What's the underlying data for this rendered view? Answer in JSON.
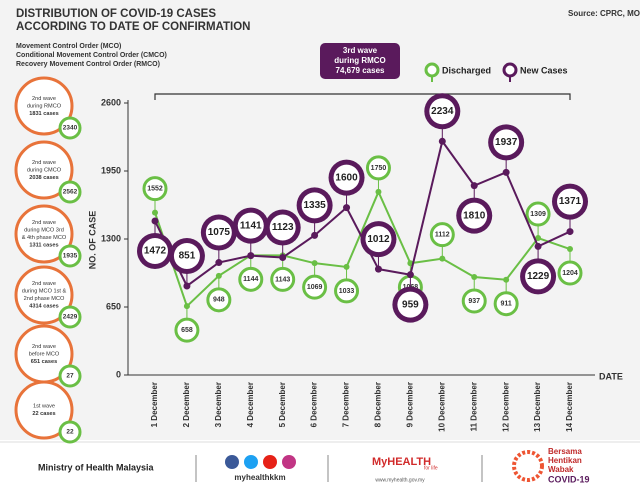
{
  "chart_data": {
    "type": "line",
    "title": "DISTRIBUTION OF COVID-19 CASES ACCORDING TO DATE OF CONFIRMATION",
    "source": "Source: CPRC, MOH",
    "subtitles": [
      "Movement Control Order (MCO)",
      "Conditional Movement Control Order (CMCO)",
      "Recovery Movement Control Order (RMCO)"
    ],
    "annotation": [
      "3rd wave",
      "during RMCO",
      "74,679 cases"
    ],
    "ylabel": "NO. OF CASE",
    "xlabel": "DATE",
    "categories": [
      "1 December",
      "2 December",
      "3 December",
      "4 December",
      "5 December",
      "6 December",
      "7 December",
      "8 December",
      "9 December",
      "10 December",
      "11 December",
      "12 December",
      "13 December",
      "14 December"
    ],
    "series": [
      {
        "name": "Discharged",
        "color": "#6abf45",
        "values": [
          1552,
          658,
          948,
          1144,
          1143,
          1069,
          1033,
          1750,
          1068,
          1112,
          937,
          911,
          1309,
          1204
        ]
      },
      {
        "name": "New Cases",
        "color": "#5a1a5c",
        "values": [
          1472,
          851,
          1075,
          1141,
          1123,
          1335,
          1600,
          1012,
          959,
          2234,
          1810,
          1937,
          1229,
          1371
        ]
      }
    ],
    "ylim": [
      0,
      2600
    ],
    "yticks": [
      0,
      650,
      1300,
      1950,
      2600
    ],
    "legend": "top-right",
    "grid": false
  },
  "waves": [
    {
      "label": [
        "2nd wave",
        "during RMCO",
        "1831 cases"
      ],
      "badge": 2340
    },
    {
      "label": [
        "2nd wave",
        "during CMCO",
        "2038 cases"
      ],
      "badge": 2562
    },
    {
      "label": [
        "2nd wave",
        "during MCO 3rd",
        "& 4th phase MCO",
        "1311 cases"
      ],
      "badge": 1935
    },
    {
      "label": [
        "2nd wave",
        "during MCO 1st &",
        "2nd phase MCO",
        "4314 cases"
      ],
      "badge": 2429
    },
    {
      "label": [
        "2nd wave",
        "before MCO",
        "651 cases"
      ],
      "badge": 27
    },
    {
      "label": [
        "1st wave",
        "22 cases"
      ],
      "badge": 22
    }
  ],
  "footer": {
    "ministry": "Ministry of Health Malaysia",
    "social": "myhealthkkm",
    "brand": "MyHEALTH",
    "tagline": "for life",
    "url": "www.myhealth.gov.my",
    "campaign": [
      "Bersama",
      "Hentikan",
      "Wabak",
      "COVID-19"
    ]
  }
}
